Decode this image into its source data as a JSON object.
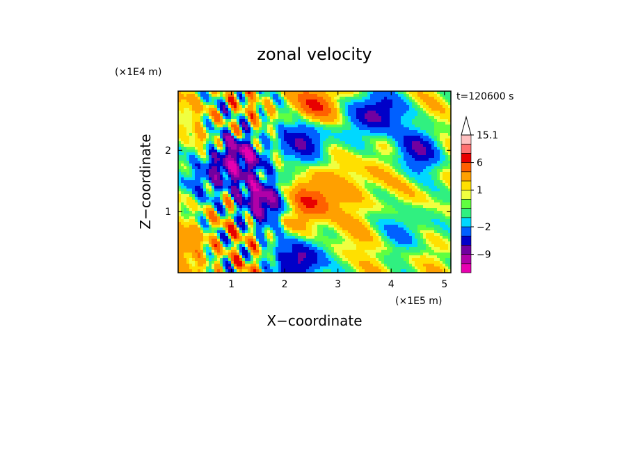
{
  "chart_data": {
    "type": "heatmap",
    "title": "zonal velocity",
    "xlabel": "X−coordinate",
    "ylabel": "Z−coordinate",
    "x_unit": "(×1E5 m)",
    "y_unit": "(×1E4 m)",
    "time_label": "t=120600 s",
    "xlim": [
      0,
      5.12
    ],
    "ylim": [
      0,
      2.97
    ],
    "x_ticks": [
      1,
      2,
      3,
      4,
      5
    ],
    "x_tick_labels": [
      "1",
      "2",
      "3",
      "4",
      "5"
    ],
    "y_ticks": [
      1,
      2
    ],
    "y_tick_labels": [
      "1",
      "2"
    ],
    "colorbar": {
      "levels": [
        -15.1,
        -12,
        -9,
        -6,
        -4,
        -2,
        -1,
        0,
        0.5,
        1,
        2,
        4,
        6,
        9,
        12,
        15.1
      ],
      "labels": [
        {
          "value": 15.1,
          "text": "15.1"
        },
        {
          "value": 6,
          "text": "6"
        },
        {
          "value": 1,
          "text": "1"
        },
        {
          "value": -2,
          "text": "−2"
        },
        {
          "value": -9,
          "text": "−9"
        }
      ],
      "colors": [
        "#e800b0",
        "#b000a8",
        "#7000a0",
        "#0000c8",
        "#0060ff",
        "#00d8ff",
        "#30f080",
        "#60ff40",
        "#f0ff40",
        "#ffe000",
        "#ffa000",
        "#ff6000",
        "#e80000",
        "#ff7070",
        "#ffc0c0"
      ],
      "extend": "max"
    },
    "field_features": [
      {
        "x": 0.7,
        "z": 1.6,
        "value": -6
      },
      {
        "x": 1.2,
        "z": 1.9,
        "value": -9
      },
      {
        "x": 1.6,
        "z": 1.2,
        "value": -10
      },
      {
        "x": 2.5,
        "z": 1.2,
        "value": 6
      },
      {
        "x": 2.4,
        "z": 2.2,
        "value": -7
      },
      {
        "x": 2.6,
        "z": 2.7,
        "value": 5
      },
      {
        "x": 3.7,
        "z": 2.6,
        "value": -8
      },
      {
        "x": 3.6,
        "z": 1.6,
        "value": 1.5
      },
      {
        "x": 4.5,
        "z": 2.0,
        "value": -6
      },
      {
        "x": 4.3,
        "z": 0.7,
        "value": -3
      },
      {
        "x": 2.3,
        "z": 0.2,
        "value": -8
      },
      {
        "x": 3.1,
        "z": 0.6,
        "value": 1
      },
      {
        "x": 0.3,
        "z": 0.5,
        "value": 2
      }
    ]
  }
}
